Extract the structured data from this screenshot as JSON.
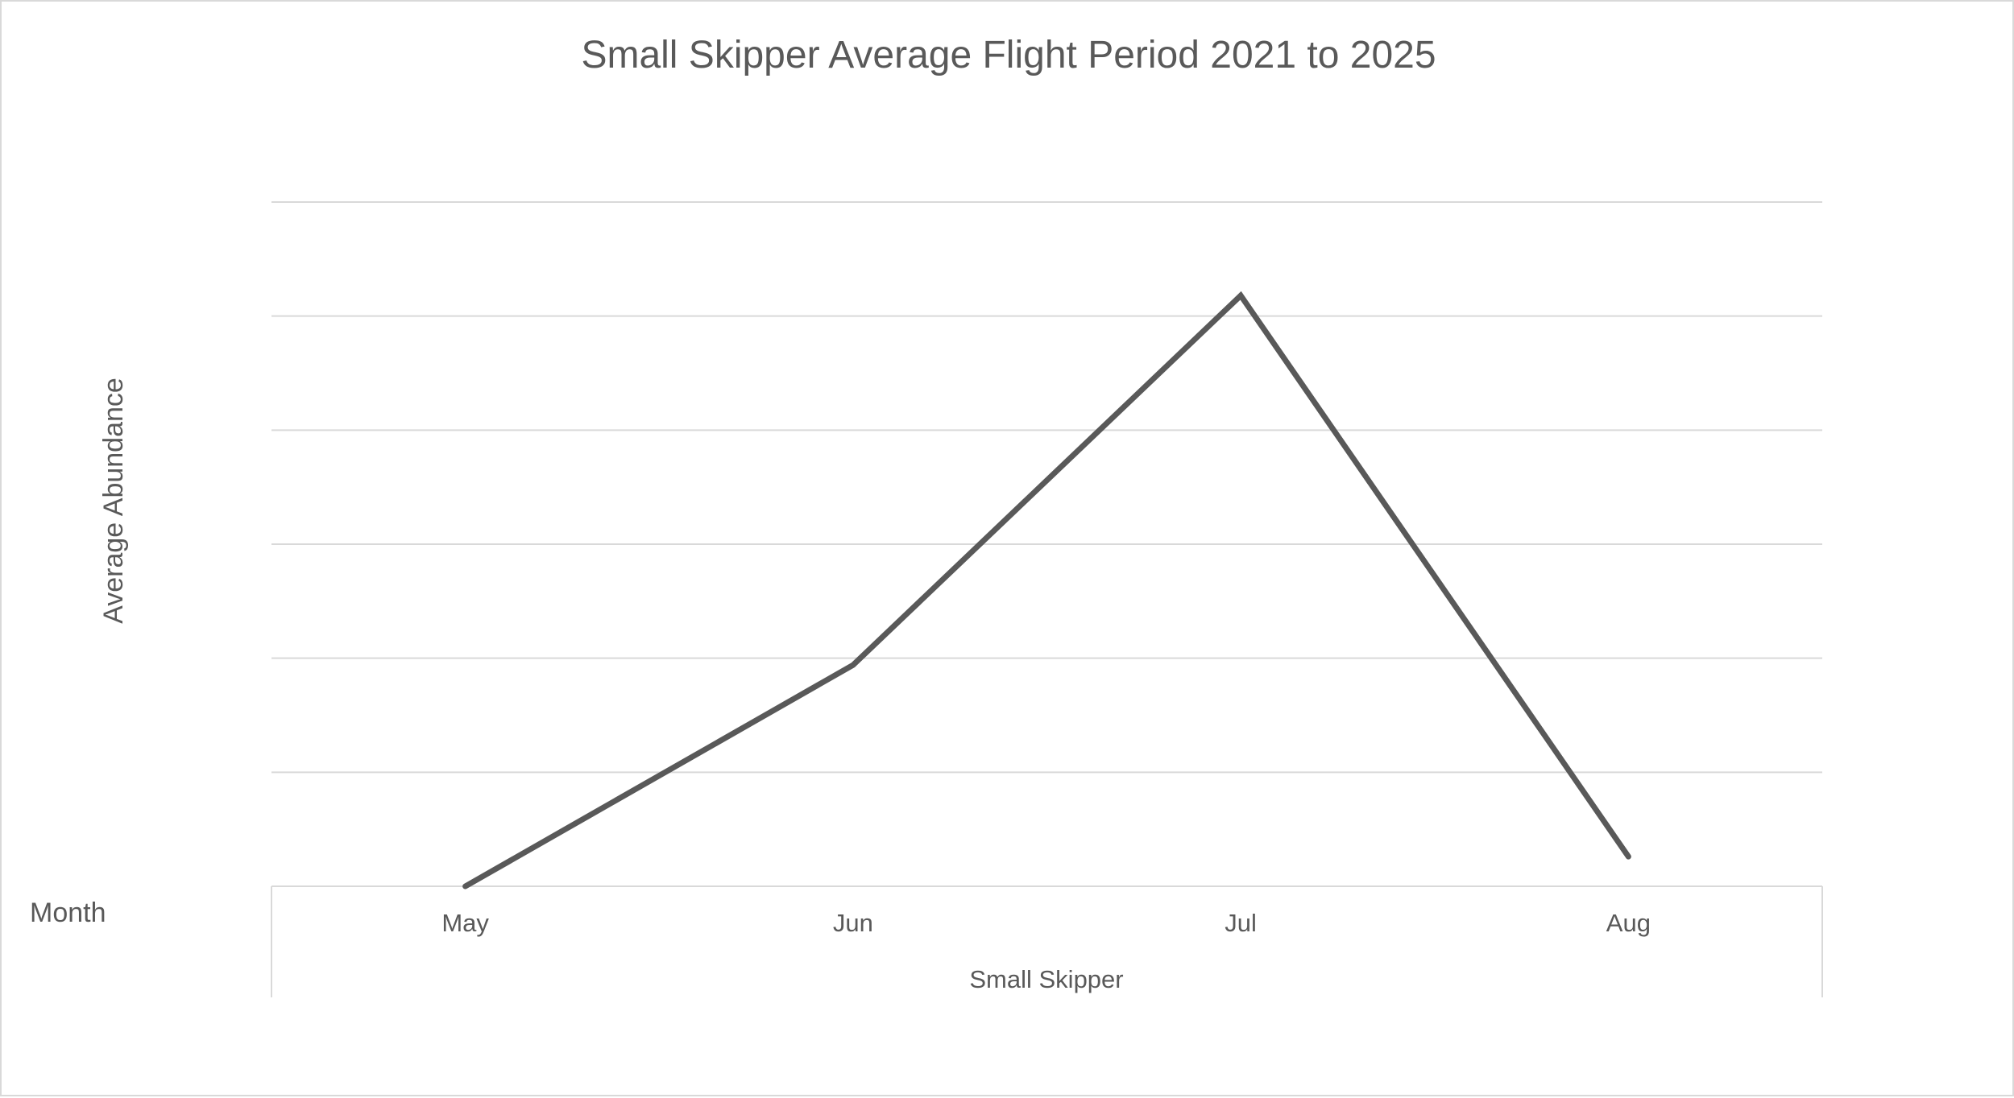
{
  "chart_data": {
    "type": "line",
    "title": "Small Skipper Average Flight Period 2021 to 2025",
    "xlabel": "Month",
    "ylabel": "Average Abundance",
    "categories": [
      "May",
      "Jun",
      "Jul",
      "Aug"
    ],
    "group_label": "Small Skipper",
    "series": [
      {
        "values": [
          0,
          1.94,
          5.18,
          0.26
        ]
      }
    ],
    "ylim": [
      0,
      6
    ],
    "gridlines": [
      1,
      2,
      3,
      4,
      5,
      6
    ],
    "grid": true,
    "legend": "none",
    "y_tick_labels_visible": false,
    "colors": {
      "series": "#595959",
      "grid": "#d9d9d9",
      "text": "#595959"
    }
  }
}
